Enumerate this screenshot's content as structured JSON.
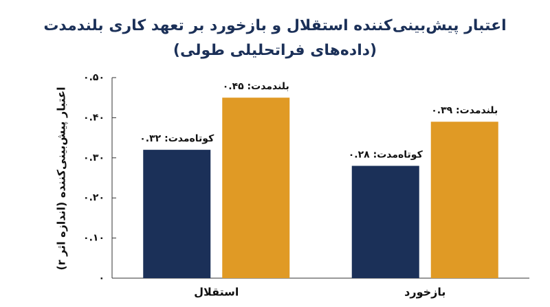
{
  "chart_data": {
    "type": "bar",
    "title": "اعتبار پیش‌بینی‌کننده استقلال و بازخورد بر تعهد کاری بلندمدت",
    "subtitle": "(داده‌های فراتحلیلی طولی)",
    "y_label": "اعتبار پیش‌بینی‌کننده (اندازه اثر r)",
    "categories": [
      "استقلال",
      "بازخورد"
    ],
    "series": [
      {
        "color": "#1b3058",
        "values": [
          0.32,
          0.28
        ],
        "value_labels": [
          "کوتاه‌مدت: ۰.۳۲",
          "کوتاه‌مدت: ۰.۲۸"
        ]
      },
      {
        "color": "#e09a25",
        "values": [
          0.45,
          0.39
        ],
        "value_labels": [
          "بلندمدت: ۰.۴۵",
          "بلندمدت: ۰.۳۹"
        ]
      }
    ],
    "ylim": [
      0,
      0.5
    ],
    "yticks": [
      {
        "value": 0,
        "label": "۰"
      },
      {
        "value": 0.1,
        "label": "۰.۱۰"
      },
      {
        "value": 0.2,
        "label": "۰.۲۰"
      },
      {
        "value": 0.3,
        "label": "۰.۳۰"
      },
      {
        "value": 0.4,
        "label": "۰.۴۰"
      },
      {
        "value": 0.5,
        "label": "۰.۵۰"
      }
    ],
    "grid": false
  }
}
